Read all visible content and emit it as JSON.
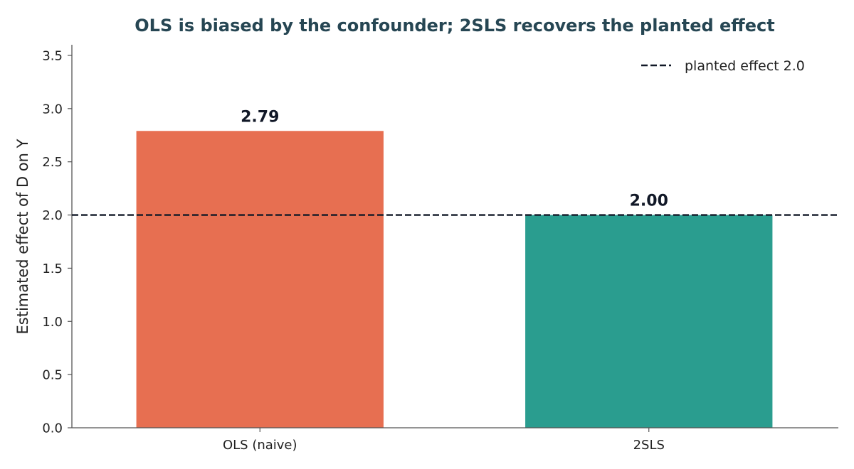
{
  "chart_data": {
    "type": "bar",
    "title": "OLS is biased by the confounder; 2SLS recovers the planted effect",
    "xlabel": "",
    "ylabel": "Estimated effect of D on Y",
    "categories": [
      "OLS (naive)",
      "2SLS"
    ],
    "values": [
      2.79,
      2.0
    ],
    "value_labels": [
      "2.79",
      "2.00"
    ],
    "bar_colors": [
      "#e76f51",
      "#2a9d8f"
    ],
    "ylim": [
      0,
      3.6
    ],
    "yticks": [
      0.0,
      0.5,
      1.0,
      1.5,
      2.0,
      2.5,
      3.0,
      3.5
    ],
    "ytick_labels": [
      "0.0",
      "0.5",
      "1.0",
      "1.5",
      "2.0",
      "2.5",
      "3.0",
      "3.5"
    ],
    "reference_line": {
      "value": 2.0,
      "label": "planted effect 2.0",
      "color": "#111827",
      "style": "dashed"
    },
    "legend_position": "top-right",
    "grid": false,
    "colors": {
      "title": "#264653",
      "axis": "#555555",
      "text": "#111827"
    }
  }
}
